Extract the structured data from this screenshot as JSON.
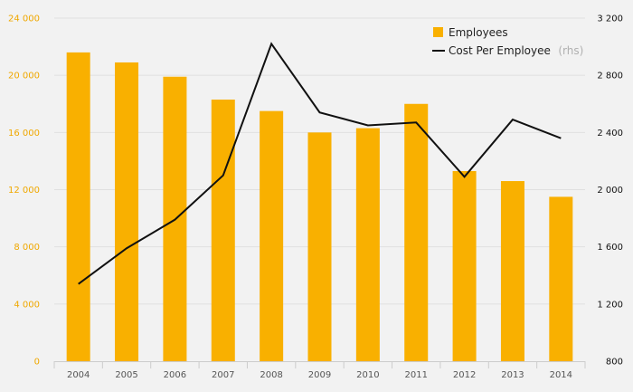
{
  "colors": {
    "background": "#f2f2f2",
    "bar": "#f9b000",
    "line": "#111111",
    "grid": "#e0e0e0",
    "left_axis_text": "#f0a800",
    "right_axis_text": "#111111"
  },
  "chart_data": {
    "type": "bar",
    "categories": [
      "2004",
      "2005",
      "2006",
      "2007",
      "2008",
      "2009",
      "2010",
      "2011",
      "2012",
      "2013",
      "2014"
    ],
    "series": [
      {
        "name": "Employees",
        "type": "bar",
        "axis": "left",
        "values": [
          21600,
          20900,
          19900,
          18300,
          17500,
          16000,
          16300,
          18000,
          13300,
          12600,
          11500
        ]
      },
      {
        "name": "Cost Per Employee",
        "type": "line",
        "axis": "right",
        "values": [
          1340,
          1590,
          1790,
          2100,
          3020,
          2540,
          2450,
          2470,
          2090,
          2490,
          2360
        ]
      }
    ],
    "y_left": {
      "lim": [
        0,
        24000
      ],
      "ticks": [
        0,
        4000,
        8000,
        12000,
        16000,
        20000,
        24000
      ],
      "tick_labels": [
        "0",
        "4 000",
        "8 000",
        "12 000",
        "16 000",
        "20 000",
        "24 000"
      ]
    },
    "y_right": {
      "lim": [
        800,
        3200
      ],
      "ticks": [
        800,
        1200,
        1600,
        2000,
        2400,
        2800,
        3200
      ],
      "tick_labels": [
        "800",
        "1 200",
        "1 600",
        "2 000",
        "2 400",
        "2 800",
        "3 200"
      ]
    },
    "legend": {
      "placement": "top-right",
      "items": [
        {
          "label": "Employees",
          "suffix": ""
        },
        {
          "label": "Cost Per Employee",
          "suffix": "(rhs)"
        }
      ]
    },
    "grid": true,
    "title": "",
    "xlabel": "",
    "ylabel": ""
  }
}
